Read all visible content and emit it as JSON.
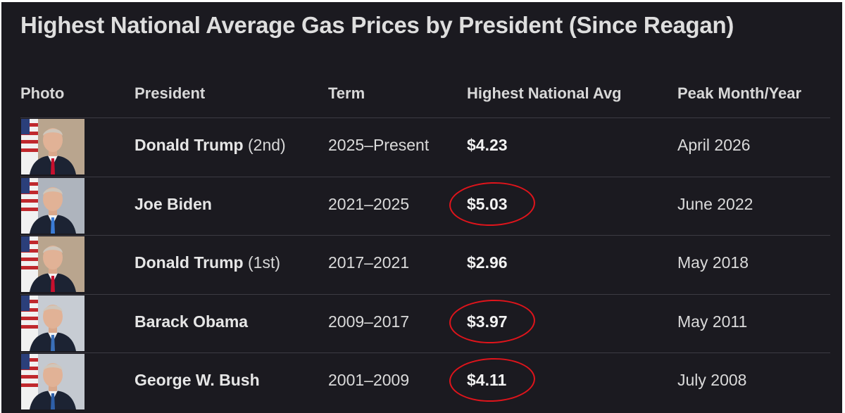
{
  "title": "Highest National Average Gas Prices by President (Since Reagan)",
  "columns": {
    "photo": "Photo",
    "president": "President",
    "term": "Term",
    "highest": "Highest National Avg",
    "peak": "Peak Month/Year"
  },
  "rows": [
    {
      "name": "Donald Trump",
      "suffix": " (2nd)",
      "term": "2025–Present",
      "price": "$4.23",
      "peak": "April 2026",
      "circled": false,
      "tie": "#c8102e",
      "bg": "#b9a58e"
    },
    {
      "name": "Joe Biden",
      "suffix": "",
      "term": "2021–2025",
      "price": "$5.03",
      "peak": "June 2022",
      "circled": true,
      "tie": "#3a7bd5",
      "bg": "#aeb4bd"
    },
    {
      "name": "Donald Trump",
      "suffix": " (1st)",
      "term": "2017–2021",
      "price": "$2.96",
      "peak": "May 2018",
      "circled": false,
      "tie": "#c8102e",
      "bg": "#b9a58e"
    },
    {
      "name": "Barack Obama",
      "suffix": "",
      "term": "2009–2017",
      "price": "$3.97",
      "peak": "May 2011",
      "circled": true,
      "tie": "#3a6fb8",
      "bg": "#c7ccd3"
    },
    {
      "name": "George W. Bush",
      "suffix": "",
      "term": "2001–2009",
      "price": "$4.11",
      "peak": "July 2008",
      "circled": true,
      "tie": "#2e5fa8",
      "bg": "#c4c9d0"
    }
  ],
  "colors": {
    "background": "#1b1a20",
    "text": "#e6e6e6",
    "highlight_circle": "#e0141b"
  }
}
